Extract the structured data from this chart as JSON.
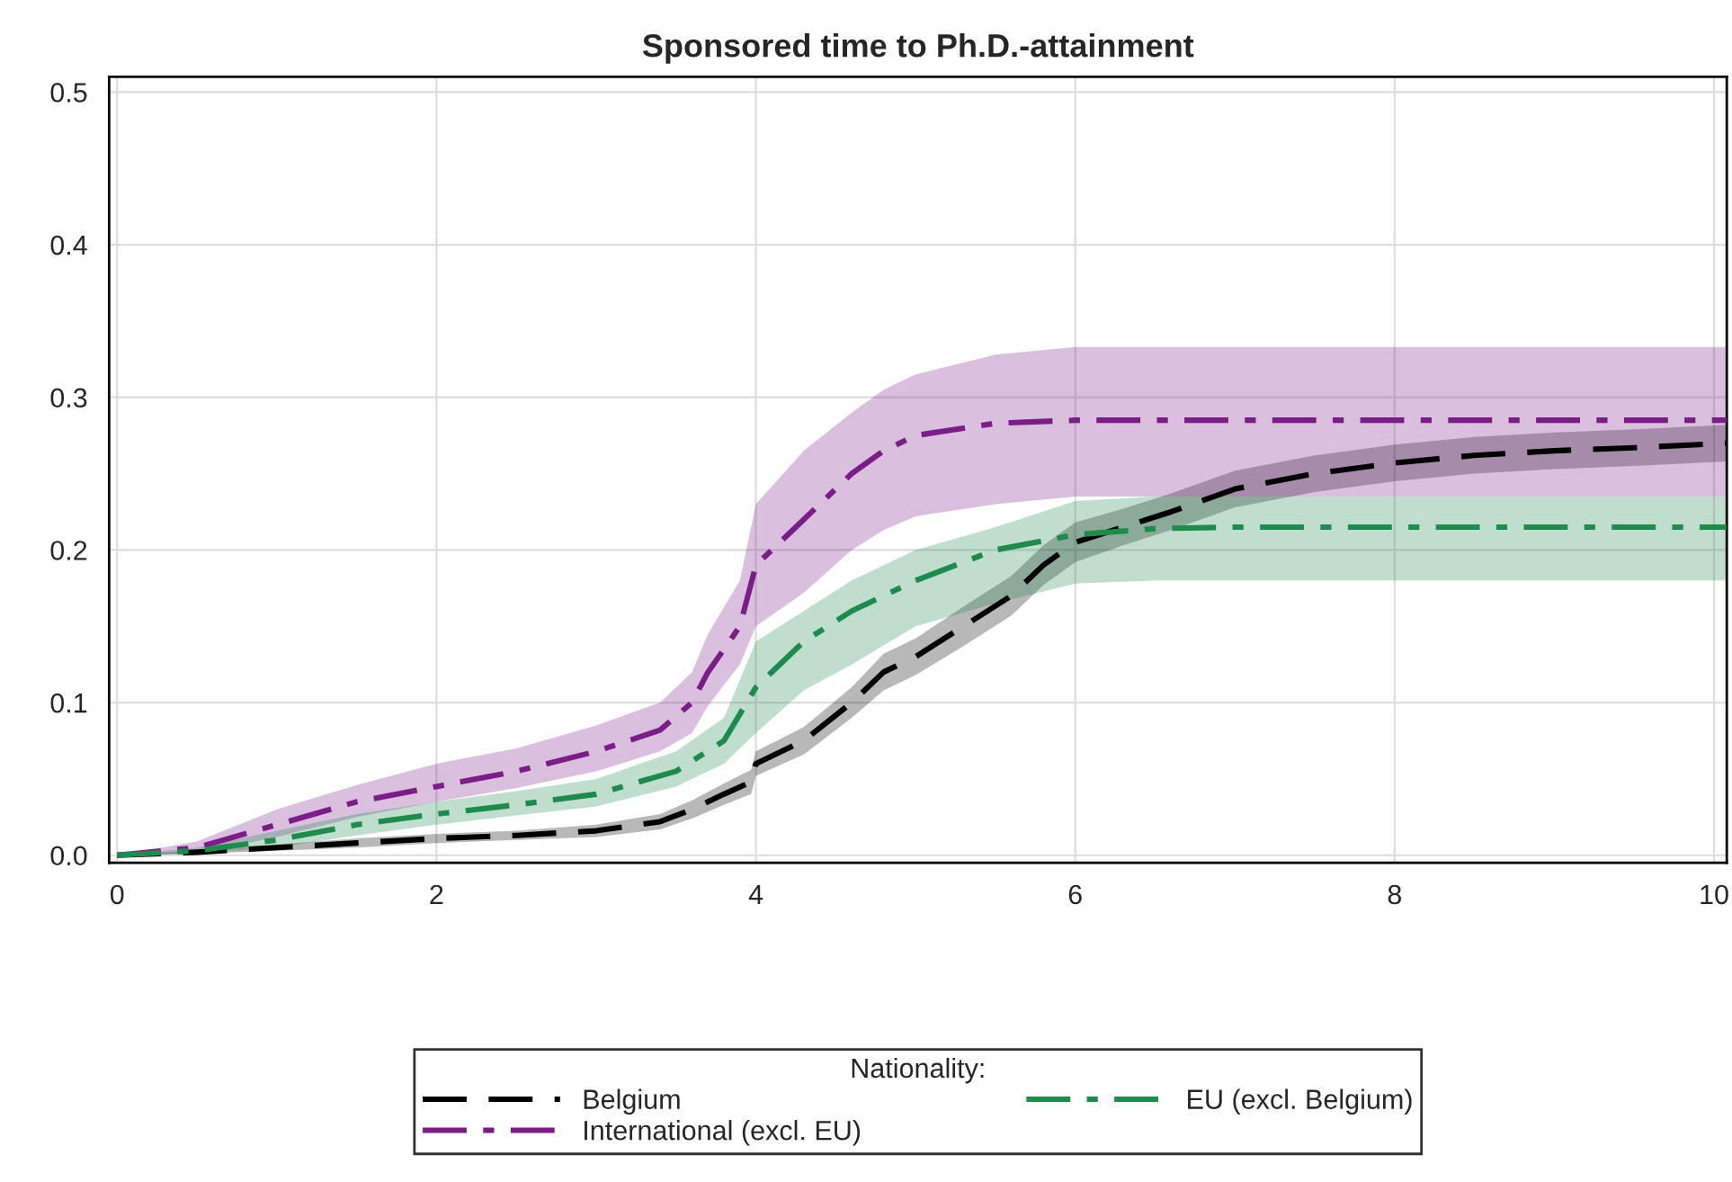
{
  "chart_data": {
    "type": "line",
    "title": "Sponsored time to Ph.D.-attainment",
    "legend_title": "Nationality:",
    "xlim": [
      -0.05,
      10.08
    ],
    "ylim": [
      -0.005,
      0.51
    ],
    "xticks": [
      0,
      2,
      4,
      6,
      8,
      10
    ],
    "yticks": [
      {
        "value": 0,
        "label": "0.0"
      },
      0.1,
      0.2,
      0.3,
      0.4,
      0.5
    ],
    "grid": true,
    "legend": "bottom",
    "series": [
      {
        "name": "Belgium",
        "color": "#000000",
        "line_style": "dashed",
        "x": [
          0,
          0.5,
          1,
          1.5,
          2,
          2.5,
          3,
          3.4,
          3.6,
          3.8,
          3.97,
          4.0,
          4.3,
          4.6,
          4.8,
          5,
          5.3,
          5.6,
          5.8,
          6,
          6.3,
          6.6,
          7,
          7.5,
          8,
          8.5,
          9,
          9.5,
          10.08
        ],
        "values": [
          0,
          0.002,
          0.005,
          0.008,
          0.011,
          0.013,
          0.016,
          0.022,
          0.03,
          0.04,
          0.048,
          0.06,
          0.075,
          0.1,
          0.12,
          0.13,
          0.15,
          0.17,
          0.19,
          0.205,
          0.215,
          0.225,
          0.24,
          0.25,
          0.257,
          0.262,
          0.265,
          0.267,
          0.27
        ],
        "lower": [
          0,
          0.001,
          0.003,
          0.005,
          0.008,
          0.01,
          0.012,
          0.017,
          0.024,
          0.033,
          0.04,
          0.052,
          0.066,
          0.09,
          0.108,
          0.118,
          0.137,
          0.157,
          0.177,
          0.192,
          0.203,
          0.213,
          0.228,
          0.238,
          0.245,
          0.25,
          0.253,
          0.255,
          0.258
        ],
        "upper": [
          0,
          0.003,
          0.007,
          0.011,
          0.014,
          0.016,
          0.02,
          0.027,
          0.036,
          0.047,
          0.056,
          0.068,
          0.084,
          0.11,
          0.132,
          0.142,
          0.163,
          0.183,
          0.203,
          0.218,
          0.227,
          0.237,
          0.252,
          0.262,
          0.269,
          0.274,
          0.277,
          0.279,
          0.282
        ]
      },
      {
        "name": "International (excl. EU)",
        "color": "#7b1d87",
        "line_style": "dashdot",
        "x": [
          0,
          0.5,
          1,
          1.5,
          2,
          2.5,
          3,
          3.4,
          3.6,
          3.7,
          3.9,
          4.0,
          4.3,
          4.6,
          4.8,
          5,
          5.5,
          6,
          10.08
        ],
        "values": [
          0,
          0.005,
          0.02,
          0.035,
          0.045,
          0.055,
          0.068,
          0.082,
          0.1,
          0.12,
          0.15,
          0.19,
          0.22,
          0.25,
          0.265,
          0.275,
          0.283,
          0.285,
          0.285
        ],
        "lower": [
          0,
          0.001,
          0.012,
          0.025,
          0.035,
          0.044,
          0.055,
          0.068,
          0.08,
          0.098,
          0.125,
          0.15,
          0.172,
          0.2,
          0.213,
          0.222,
          0.23,
          0.235,
          0.235
        ],
        "upper": [
          0,
          0.009,
          0.03,
          0.046,
          0.06,
          0.07,
          0.085,
          0.1,
          0.12,
          0.145,
          0.18,
          0.23,
          0.265,
          0.29,
          0.305,
          0.315,
          0.328,
          0.333,
          0.333
        ]
      },
      {
        "name": "EU (excl. Belgium)",
        "color": "#1e8a4c",
        "line_style": "dashdot",
        "x": [
          0,
          0.5,
          1,
          1.5,
          2,
          2.5,
          3,
          3.5,
          3.8,
          4.0,
          4.3,
          4.6,
          5,
          5.5,
          6,
          6.5,
          7,
          10.08
        ],
        "values": [
          0,
          0.003,
          0.01,
          0.02,
          0.027,
          0.033,
          0.04,
          0.055,
          0.075,
          0.11,
          0.14,
          0.16,
          0.18,
          0.2,
          0.21,
          0.214,
          0.215,
          0.215
        ],
        "lower": [
          0,
          0.001,
          0.005,
          0.013,
          0.02,
          0.026,
          0.032,
          0.045,
          0.06,
          0.08,
          0.108,
          0.125,
          0.15,
          0.165,
          0.178,
          0.18,
          0.18,
          0.18
        ],
        "upper": [
          0,
          0.005,
          0.016,
          0.027,
          0.035,
          0.042,
          0.05,
          0.068,
          0.09,
          0.14,
          0.16,
          0.18,
          0.2,
          0.215,
          0.232,
          0.235,
          0.235,
          0.235
        ]
      }
    ]
  }
}
